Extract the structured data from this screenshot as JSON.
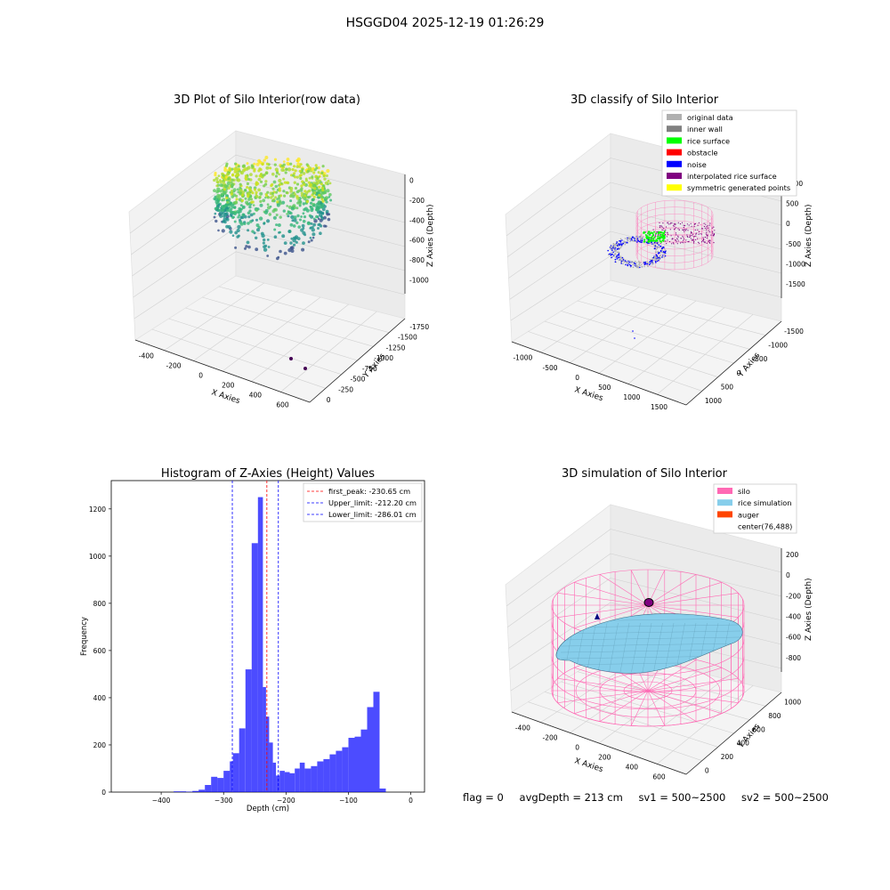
{
  "suptitle": "HSGGD04 2025-12-19 01:26:29",
  "stats": {
    "flag": "flag = 0",
    "avg_depth": "avgDepth = 213 cm",
    "sv1": "sv1 = 500~2500",
    "sv2": "sv2 = 500~2500"
  },
  "chart_data": [
    {
      "type": "scatter3d",
      "title": "3D Plot of Silo Interior(row data)",
      "xlabel": "X Axies",
      "ylabel": "Y Axies",
      "zlabel": "Z Axies (Depth)",
      "x_ticks": [
        "-400",
        "-200",
        "0",
        "200",
        "400",
        "600"
      ],
      "y_ticks": [
        "0",
        "-250",
        "-500",
        "-750",
        "-1000",
        "-1250",
        "-1500",
        "-1750"
      ],
      "z_ticks": [
        "0",
        "-200",
        "-400",
        "-600",
        "-800",
        "-1000"
      ],
      "colormap": "viridis",
      "outliers": [
        {
          "x": 500,
          "y": -1750,
          "z": -1000
        },
        {
          "x": 610,
          "y": -1700,
          "z": -1000
        }
      ]
    },
    {
      "type": "scatter3d",
      "title": "3D classify of Silo Interior",
      "xlabel": "X Axies",
      "ylabel": "Y Axies",
      "zlabel": "Z Axies (Depth)",
      "x_ticks": [
        "-1000",
        "-500",
        "0",
        "500",
        "1000",
        "1500"
      ],
      "y_ticks": [
        "1000",
        "500",
        "0",
        "-500",
        "-1000",
        "-1500"
      ],
      "z_ticks": [
        "1000",
        "500",
        "0",
        "-500",
        "-1000",
        "-1500"
      ],
      "legend_position": "top-right",
      "legend": [
        {
          "label": "original data",
          "color": "#b0b0b0"
        },
        {
          "label": "inner wall",
          "color": "#808080"
        },
        {
          "label": "rice surface",
          "color": "#00ff00"
        },
        {
          "label": "obstacle",
          "color": "#ff0000"
        },
        {
          "label": "noise",
          "color": "#0000ff"
        },
        {
          "label": "interpolated rice surface",
          "color": "#800080"
        },
        {
          "label": "symmetric generated points",
          "color": "#ffff00"
        }
      ]
    },
    {
      "type": "bar",
      "title": "Histogram of Z-Axies (Height) Values",
      "xlabel": "Depth (cm)",
      "ylabel": "Frequency",
      "xlim": [
        -480,
        22
      ],
      "ylim": [
        0,
        1320
      ],
      "x_ticks": [
        -400,
        -300,
        -200,
        -100,
        0
      ],
      "x_tick_labels": [
        "−400",
        "−300",
        "−200",
        "−100",
        "0"
      ],
      "y_ticks": [
        0,
        200,
        400,
        600,
        800,
        1000,
        1200
      ],
      "bar_color": "#0000ff",
      "bin_edges": [
        -380,
        -370,
        -360,
        -350,
        -340,
        -330,
        -320,
        -310,
        -300,
        -290,
        -285,
        -275,
        -265,
        -255,
        -245,
        -237,
        -232,
        -227,
        -221,
        -216,
        -210,
        -202,
        -194,
        -186,
        -178,
        -170,
        -160,
        -150,
        -140,
        -130,
        -120,
        -110,
        -100,
        -90,
        -80,
        -70,
        -60,
        -50,
        -40,
        -30,
        -20,
        -10,
        -2
      ],
      "values": [
        3,
        3,
        2,
        5,
        10,
        30,
        65,
        60,
        90,
        130,
        165,
        270,
        520,
        1055,
        1250,
        445,
        320,
        210,
        125,
        70,
        90,
        85,
        80,
        100,
        125,
        100,
        110,
        130,
        140,
        160,
        175,
        190,
        230,
        235,
        265,
        360,
        425,
        15,
        0,
        0,
        0,
        0
      ],
      "vlines": [
        {
          "label": "first_peak: -230.65 cm",
          "value": -230.65,
          "color": "#ff0000"
        },
        {
          "label": "Upper_limit: -212.20 cm",
          "value": -212.2,
          "color": "#0000ff"
        },
        {
          "label": "Lower_limit: -286.01 cm",
          "value": -286.01,
          "color": "#0000ff"
        }
      ],
      "legend_position": "top-right"
    },
    {
      "type": "surface3d",
      "title": "3D simulation of Silo Interior",
      "xlabel": "X Axies",
      "ylabel": "Y Axies",
      "zlabel": "Z Axies (Depth)",
      "x_ticks": [
        "-400",
        "-200",
        "0",
        "200",
        "400",
        "600"
      ],
      "y_ticks": [
        "0",
        "200",
        "400",
        "600",
        "800",
        "1000"
      ],
      "z_ticks": [
        "200",
        "0",
        "-200",
        "-400",
        "-600",
        "-800"
      ],
      "legend_position": "top-right",
      "legend": [
        {
          "label": "silo",
          "color": "#ff69b4"
        },
        {
          "label": "rice simulation",
          "color": "#87ceeb"
        },
        {
          "label": "auger",
          "color": "#ff4500"
        },
        {
          "label": "center(76,488)",
          "color": ""
        }
      ]
    }
  ]
}
